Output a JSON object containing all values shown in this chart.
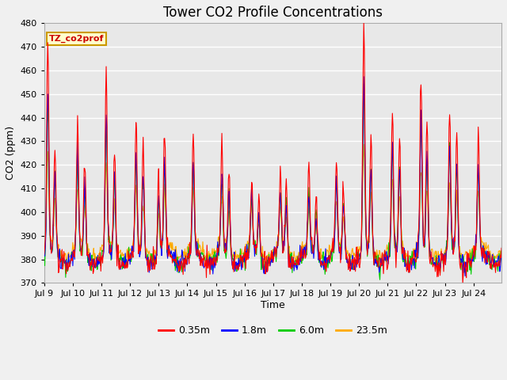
{
  "title": "Tower CO2 Profile Concentrations",
  "xlabel": "Time",
  "ylabel": "CO2 (ppm)",
  "ylim": [
    370,
    480
  ],
  "yticks": [
    370,
    380,
    390,
    400,
    410,
    420,
    430,
    440,
    450,
    460,
    470,
    480
  ],
  "series_labels": [
    "0.35m",
    "1.8m",
    "6.0m",
    "23.5m"
  ],
  "series_colors": [
    "#ff0000",
    "#0000ff",
    "#00cc00",
    "#ffaa00"
  ],
  "legend_label": "TZ_co2prof",
  "legend_bg": "#ffffcc",
  "legend_border": "#cc9900",
  "plot_bg": "#e8e8e8",
  "fig_bg": "#f0f0f0",
  "grid_color": "#ffffff",
  "n_days": 16,
  "points_per_day": 48,
  "start_day": 9,
  "title_fontsize": 12,
  "axis_fontsize": 9,
  "tick_fontsize": 8,
  "figsize": [
    6.4,
    4.8
  ],
  "dpi": 100
}
